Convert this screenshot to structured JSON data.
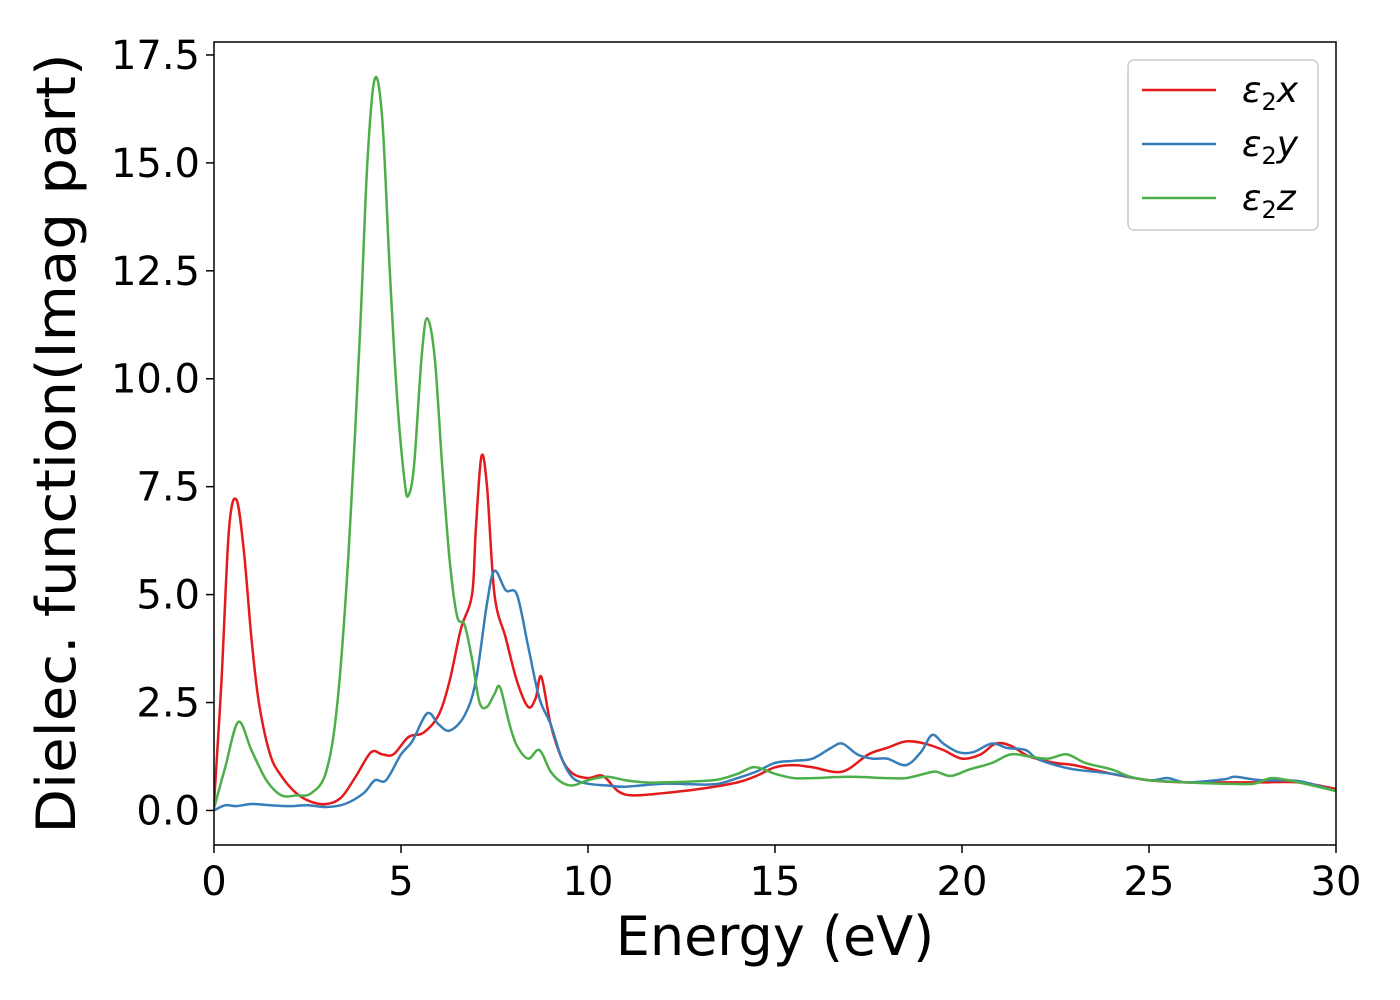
{
  "chart_data": {
    "type": "line",
    "xlabel": "Energy (eV)",
    "ylabel": "Dielec. function(Imag part)",
    "xlim": [
      0,
      30
    ],
    "ylim": [
      -0.8,
      17.8
    ],
    "xticks": [
      0,
      5,
      10,
      15,
      20,
      25,
      30
    ],
    "xtick_labels": [
      "0",
      "5",
      "10",
      "15",
      "20",
      "25",
      "30"
    ],
    "yticks": [
      0,
      2.5,
      5,
      7.5,
      10,
      12.5,
      15,
      17.5
    ],
    "ytick_labels": [
      "0.0",
      "2.5",
      "5.0",
      "7.5",
      "10.0",
      "12.5",
      "15.0",
      "17.5"
    ],
    "grid": false,
    "legend_position": "top-right",
    "series": [
      {
        "name": "ε2x",
        "legend_main": "ε",
        "legend_sub": "2",
        "legend_var": "x",
        "color": "#e41a1c",
        "points": [
          [
            0,
            0.15
          ],
          [
            0.2,
            3.0
          ],
          [
            0.4,
            6.5
          ],
          [
            0.6,
            7.2
          ],
          [
            0.8,
            6.0
          ],
          [
            1.0,
            4.0
          ],
          [
            1.2,
            2.5
          ],
          [
            1.5,
            1.3
          ],
          [
            1.8,
            0.8
          ],
          [
            2.2,
            0.4
          ],
          [
            2.6,
            0.2
          ],
          [
            3.0,
            0.15
          ],
          [
            3.4,
            0.3
          ],
          [
            3.8,
            0.8
          ],
          [
            4.2,
            1.35
          ],
          [
            4.5,
            1.3
          ],
          [
            4.8,
            1.3
          ],
          [
            5.2,
            1.7
          ],
          [
            5.6,
            1.8
          ],
          [
            6.0,
            2.2
          ],
          [
            6.3,
            3.0
          ],
          [
            6.6,
            4.2
          ],
          [
            6.9,
            5.0
          ],
          [
            7.0,
            6.5
          ],
          [
            7.15,
            8.2
          ],
          [
            7.3,
            7.5
          ],
          [
            7.5,
            5.0
          ],
          [
            7.8,
            4.0
          ],
          [
            8.1,
            3.0
          ],
          [
            8.4,
            2.4
          ],
          [
            8.6,
            2.6
          ],
          [
            8.75,
            3.1
          ],
          [
            9.0,
            2.0
          ],
          [
            9.3,
            1.2
          ],
          [
            9.6,
            0.85
          ],
          [
            10.0,
            0.75
          ],
          [
            10.4,
            0.8
          ],
          [
            10.8,
            0.45
          ],
          [
            11.2,
            0.35
          ],
          [
            12.0,
            0.4
          ],
          [
            13.0,
            0.5
          ],
          [
            14.0,
            0.65
          ],
          [
            14.5,
            0.8
          ],
          [
            15.0,
            1.0
          ],
          [
            15.5,
            1.05
          ],
          [
            16.0,
            1.0
          ],
          [
            16.8,
            0.9
          ],
          [
            17.5,
            1.3
          ],
          [
            18.0,
            1.45
          ],
          [
            18.5,
            1.6
          ],
          [
            19.0,
            1.55
          ],
          [
            19.5,
            1.4
          ],
          [
            20.0,
            1.2
          ],
          [
            20.5,
            1.3
          ],
          [
            20.9,
            1.55
          ],
          [
            21.3,
            1.5
          ],
          [
            21.8,
            1.25
          ],
          [
            22.5,
            1.1
          ],
          [
            23.0,
            1.05
          ],
          [
            24.0,
            0.85
          ],
          [
            25.0,
            0.7
          ],
          [
            26.0,
            0.65
          ],
          [
            27.0,
            0.65
          ],
          [
            28.0,
            0.65
          ],
          [
            29.0,
            0.65
          ],
          [
            30.0,
            0.5
          ]
        ]
      },
      {
        "name": "ε2y",
        "legend_main": "ε",
        "legend_sub": "2",
        "legend_var": "y",
        "color": "#377eb8",
        "points": [
          [
            0,
            0.0
          ],
          [
            0.3,
            0.12
          ],
          [
            0.6,
            0.1
          ],
          [
            1.0,
            0.15
          ],
          [
            1.5,
            0.12
          ],
          [
            2.0,
            0.1
          ],
          [
            2.5,
            0.12
          ],
          [
            3.0,
            0.08
          ],
          [
            3.5,
            0.15
          ],
          [
            4.0,
            0.4
          ],
          [
            4.3,
            0.7
          ],
          [
            4.6,
            0.7
          ],
          [
            5.0,
            1.3
          ],
          [
            5.3,
            1.6
          ],
          [
            5.7,
            2.25
          ],
          [
            6.0,
            2.0
          ],
          [
            6.3,
            1.85
          ],
          [
            6.7,
            2.2
          ],
          [
            7.0,
            3.0
          ],
          [
            7.3,
            4.8
          ],
          [
            7.5,
            5.55
          ],
          [
            7.8,
            5.1
          ],
          [
            8.1,
            5.0
          ],
          [
            8.4,
            3.8
          ],
          [
            8.7,
            2.6
          ],
          [
            9.0,
            2.0
          ],
          [
            9.3,
            1.2
          ],
          [
            9.6,
            0.75
          ],
          [
            10.0,
            0.62
          ],
          [
            10.5,
            0.58
          ],
          [
            11.0,
            0.55
          ],
          [
            12.0,
            0.62
          ],
          [
            13.0,
            0.6
          ],
          [
            13.5,
            0.62
          ],
          [
            14.0,
            0.75
          ],
          [
            14.5,
            0.9
          ],
          [
            15.0,
            1.1
          ],
          [
            15.5,
            1.15
          ],
          [
            16.0,
            1.2
          ],
          [
            16.5,
            1.45
          ],
          [
            16.8,
            1.55
          ],
          [
            17.2,
            1.3
          ],
          [
            17.6,
            1.2
          ],
          [
            18.0,
            1.2
          ],
          [
            18.5,
            1.05
          ],
          [
            18.9,
            1.35
          ],
          [
            19.2,
            1.75
          ],
          [
            19.5,
            1.55
          ],
          [
            19.9,
            1.35
          ],
          [
            20.3,
            1.35
          ],
          [
            20.8,
            1.55
          ],
          [
            21.2,
            1.45
          ],
          [
            21.7,
            1.4
          ],
          [
            22.0,
            1.2
          ],
          [
            22.5,
            1.05
          ],
          [
            23.0,
            0.95
          ],
          [
            24.0,
            0.85
          ],
          [
            25.0,
            0.7
          ],
          [
            25.5,
            0.75
          ],
          [
            26.0,
            0.65
          ],
          [
            27.0,
            0.72
          ],
          [
            27.3,
            0.78
          ],
          [
            28.0,
            0.7
          ],
          [
            29.0,
            0.68
          ],
          [
            30.0,
            0.45
          ]
        ]
      },
      {
        "name": "ε2z",
        "legend_main": "ε",
        "legend_sub": "2",
        "legend_var": "z",
        "color": "#4daf4a",
        "points": [
          [
            0,
            0.05
          ],
          [
            0.3,
            1.0
          ],
          [
            0.65,
            2.05
          ],
          [
            1.0,
            1.4
          ],
          [
            1.4,
            0.7
          ],
          [
            1.8,
            0.35
          ],
          [
            2.2,
            0.35
          ],
          [
            2.6,
            0.4
          ],
          [
            3.0,
            0.9
          ],
          [
            3.3,
            2.5
          ],
          [
            3.6,
            6.0
          ],
          [
            3.9,
            11.0
          ],
          [
            4.1,
            15.0
          ],
          [
            4.3,
            16.95
          ],
          [
            4.5,
            16.0
          ],
          [
            4.7,
            12.5
          ],
          [
            4.9,
            9.5
          ],
          [
            5.1,
            7.6
          ],
          [
            5.2,
            7.3
          ],
          [
            5.35,
            8.0
          ],
          [
            5.55,
            10.5
          ],
          [
            5.7,
            11.4
          ],
          [
            5.9,
            10.5
          ],
          [
            6.1,
            8.0
          ],
          [
            6.3,
            5.8
          ],
          [
            6.5,
            4.5
          ],
          [
            6.7,
            4.3
          ],
          [
            6.9,
            3.5
          ],
          [
            7.1,
            2.5
          ],
          [
            7.3,
            2.4
          ],
          [
            7.5,
            2.7
          ],
          [
            7.65,
            2.85
          ],
          [
            7.9,
            2.0
          ],
          [
            8.1,
            1.5
          ],
          [
            8.4,
            1.2
          ],
          [
            8.7,
            1.4
          ],
          [
            9.0,
            0.9
          ],
          [
            9.3,
            0.65
          ],
          [
            9.6,
            0.58
          ],
          [
            10.0,
            0.7
          ],
          [
            10.5,
            0.78
          ],
          [
            11.0,
            0.7
          ],
          [
            11.5,
            0.65
          ],
          [
            12.0,
            0.65
          ],
          [
            13.0,
            0.68
          ],
          [
            13.5,
            0.72
          ],
          [
            14.0,
            0.85
          ],
          [
            14.4,
            1.0
          ],
          [
            14.7,
            0.95
          ],
          [
            15.0,
            0.85
          ],
          [
            15.5,
            0.75
          ],
          [
            16.0,
            0.75
          ],
          [
            17.0,
            0.78
          ],
          [
            18.0,
            0.75
          ],
          [
            18.5,
            0.75
          ],
          [
            19.0,
            0.85
          ],
          [
            19.3,
            0.9
          ],
          [
            19.7,
            0.8
          ],
          [
            20.2,
            0.95
          ],
          [
            20.8,
            1.1
          ],
          [
            21.3,
            1.3
          ],
          [
            21.8,
            1.25
          ],
          [
            22.3,
            1.2
          ],
          [
            22.8,
            1.3
          ],
          [
            23.3,
            1.1
          ],
          [
            24.0,
            0.95
          ],
          [
            24.5,
            0.78
          ],
          [
            25.0,
            0.7
          ],
          [
            26.0,
            0.65
          ],
          [
            27.0,
            0.62
          ],
          [
            27.8,
            0.62
          ],
          [
            28.3,
            0.75
          ],
          [
            29.0,
            0.65
          ],
          [
            30.0,
            0.45
          ]
        ]
      }
    ]
  }
}
